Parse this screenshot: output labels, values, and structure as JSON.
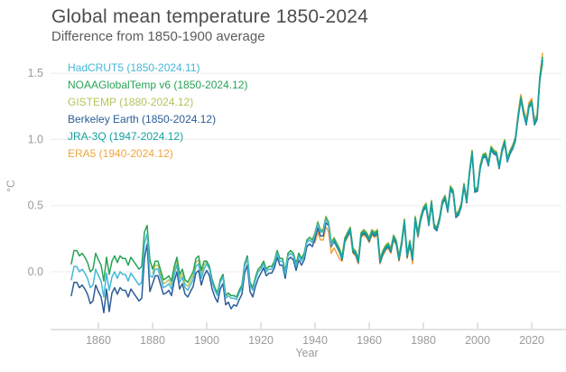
{
  "header": {
    "title": "Global mean temperature 1850-2024",
    "subtitle": "Difference from 1850-1900 average"
  },
  "chart_data": {
    "type": "line",
    "title": "Global mean temperature 1850-2024",
    "subtitle": "Difference from 1850-1900 average",
    "xlabel": "Year",
    "ylabel": "°C",
    "xlim": [
      1850,
      2024
    ],
    "ylim": [
      -0.44,
      1.7
    ],
    "grid": "horizontal",
    "legend_position": "top-left",
    "x_ticks": [
      1860,
      1880,
      1900,
      1920,
      1940,
      1960,
      1980,
      2000,
      2020
    ],
    "y_ticks": [
      {
        "label": "0.0",
        "value": 0.0
      },
      {
        "label": "0.5",
        "value": 0.5
      },
      {
        "label": "1.0",
        "value": 1.0
      },
      {
        "label": "1.5",
        "value": 1.5
      }
    ],
    "axis_color": "#c6c6c6",
    "grid_color": "#ececec",
    "draw_order": [
      2,
      5,
      3,
      1,
      0,
      4
    ],
    "series": [
      {
        "name": "HadCRUT5",
        "legend_label": "HadCRUT5 (1850-2024.11)",
        "color": "#45b7d7",
        "start_year": 1850,
        "values": [
          -0.06,
          0.04,
          0.04,
          0.0,
          0.02,
          -0.01,
          -0.05,
          -0.12,
          -0.1,
          0.02,
          -0.03,
          -0.07,
          -0.19,
          -0.01,
          -0.14,
          -0.04,
          0.0,
          -0.05,
          0.0,
          -0.02,
          -0.02,
          -0.07,
          -0.01,
          -0.04,
          -0.07,
          -0.1,
          -0.08,
          0.21,
          0.29,
          -0.03,
          -0.04,
          0.02,
          0.02,
          -0.05,
          -0.12,
          -0.11,
          -0.09,
          -0.13,
          -0.02,
          0.05,
          -0.08,
          -0.04,
          -0.12,
          -0.14,
          -0.1,
          -0.06,
          0.04,
          0.06,
          -0.05,
          0.02,
          0.06,
          0.02,
          -0.08,
          -0.14,
          -0.18,
          -0.08,
          -0.04,
          -0.2,
          -0.18,
          -0.2,
          -0.2,
          -0.21,
          -0.16,
          -0.12,
          0.04,
          0.1,
          -0.1,
          -0.14,
          -0.06,
          0.0,
          0.02,
          0.06,
          0.0,
          0.02,
          0.02,
          0.06,
          0.14,
          0.08,
          0.08,
          -0.02,
          0.12,
          0.14,
          0.12,
          0.04,
          0.12,
          0.08,
          0.12,
          0.22,
          0.24,
          0.22,
          0.28,
          0.36,
          0.3,
          0.3,
          0.4,
          0.36,
          0.2,
          0.24,
          0.2,
          0.16,
          0.1,
          0.24,
          0.28,
          0.32,
          0.16,
          0.14,
          0.08,
          0.28,
          0.3,
          0.28,
          0.24,
          0.3,
          0.28,
          0.3,
          0.08,
          0.14,
          0.18,
          0.2,
          0.16,
          0.26,
          0.22,
          0.1,
          0.22,
          0.38,
          0.12,
          0.22,
          0.1,
          0.4,
          0.28,
          0.4,
          0.47,
          0.5,
          0.36,
          0.52,
          0.34,
          0.32,
          0.4,
          0.52,
          0.56,
          0.46,
          0.63,
          0.6,
          0.42,
          0.44,
          0.5,
          0.65,
          0.53,
          0.74,
          0.9,
          0.61,
          0.62,
          0.79,
          0.87,
          0.88,
          0.81,
          0.93,
          0.9,
          0.89,
          0.79,
          0.91,
          0.98,
          0.84,
          0.9,
          0.94,
          1.0,
          1.17,
          1.31,
          1.2,
          1.12,
          1.25,
          1.28,
          1.12,
          1.16,
          1.46,
          1.6
        ]
      },
      {
        "name": "NOAAGlobalTemp v6",
        "legend_label": "NOAAGlobalTemp v6 (1850-2024.12)",
        "color": "#27a356",
        "start_year": 1850,
        "values": [
          0.06,
          0.16,
          0.16,
          0.12,
          0.14,
          0.11,
          0.07,
          0.0,
          0.02,
          0.14,
          0.09,
          0.05,
          -0.07,
          0.11,
          -0.02,
          0.08,
          0.12,
          0.07,
          0.12,
          0.1,
          0.1,
          0.05,
          0.11,
          0.08,
          0.05,
          0.02,
          0.04,
          0.3,
          0.35,
          0.09,
          0.02,
          0.08,
          0.08,
          0.01,
          -0.06,
          -0.05,
          -0.03,
          -0.07,
          0.04,
          0.11,
          -0.02,
          0.02,
          -0.06,
          -0.08,
          -0.04,
          0.0,
          0.1,
          0.12,
          0.01,
          0.08,
          0.08,
          0.04,
          -0.06,
          -0.12,
          -0.16,
          -0.06,
          -0.02,
          -0.18,
          -0.16,
          -0.18,
          -0.18,
          -0.19,
          -0.14,
          -0.1,
          0.06,
          0.12,
          -0.08,
          -0.12,
          -0.04,
          0.02,
          0.04,
          0.08,
          0.02,
          0.04,
          0.04,
          0.08,
          0.16,
          0.1,
          0.1,
          0.0,
          0.14,
          0.16,
          0.14,
          0.06,
          0.14,
          0.1,
          0.14,
          0.24,
          0.26,
          0.24,
          0.29,
          0.37,
          0.31,
          0.31,
          0.41,
          0.37,
          0.21,
          0.25,
          0.21,
          0.17,
          0.11,
          0.25,
          0.29,
          0.33,
          0.17,
          0.15,
          0.09,
          0.29,
          0.31,
          0.29,
          0.25,
          0.31,
          0.29,
          0.31,
          0.09,
          0.15,
          0.19,
          0.21,
          0.17,
          0.27,
          0.23,
          0.11,
          0.23,
          0.39,
          0.13,
          0.23,
          0.11,
          0.41,
          0.29,
          0.41,
          0.48,
          0.51,
          0.37,
          0.53,
          0.35,
          0.33,
          0.41,
          0.53,
          0.57,
          0.47,
          0.64,
          0.61,
          0.43,
          0.45,
          0.51,
          0.66,
          0.54,
          0.75,
          0.91,
          0.62,
          0.63,
          0.8,
          0.88,
          0.89,
          0.82,
          0.94,
          0.91,
          0.9,
          0.8,
          0.92,
          0.99,
          0.85,
          0.91,
          0.95,
          1.01,
          1.18,
          1.32,
          1.21,
          1.13,
          1.26,
          1.29,
          1.13,
          1.17,
          1.47,
          1.62
        ]
      },
      {
        "name": "GISTEMP",
        "legend_label": "GISTEMP (1880-2024.12)",
        "color": "#b4c45c",
        "start_year": 1880,
        "values": [
          -0.01,
          0.05,
          0.05,
          -0.02,
          -0.09,
          -0.08,
          -0.06,
          -0.1,
          0.01,
          0.08,
          -0.05,
          -0.01,
          -0.09,
          -0.11,
          -0.07,
          -0.03,
          0.07,
          0.09,
          -0.02,
          0.05,
          0.08,
          0.04,
          -0.06,
          -0.12,
          -0.16,
          -0.06,
          -0.02,
          -0.18,
          -0.16,
          -0.18,
          -0.18,
          -0.19,
          -0.14,
          -0.1,
          0.06,
          0.12,
          -0.08,
          -0.12,
          -0.04,
          0.02,
          0.04,
          0.08,
          0.02,
          0.04,
          0.04,
          0.08,
          0.16,
          0.1,
          0.1,
          0.0,
          0.14,
          0.16,
          0.14,
          0.06,
          0.14,
          0.1,
          0.14,
          0.24,
          0.26,
          0.24,
          0.3,
          0.38,
          0.32,
          0.32,
          0.42,
          0.38,
          0.22,
          0.26,
          0.22,
          0.18,
          0.12,
          0.26,
          0.3,
          0.34,
          0.18,
          0.16,
          0.1,
          0.3,
          0.32,
          0.3,
          0.26,
          0.32,
          0.3,
          0.32,
          0.1,
          0.16,
          0.2,
          0.22,
          0.18,
          0.28,
          0.24,
          0.12,
          0.24,
          0.4,
          0.14,
          0.24,
          0.12,
          0.42,
          0.3,
          0.42,
          0.49,
          0.52,
          0.38,
          0.54,
          0.36,
          0.34,
          0.42,
          0.54,
          0.58,
          0.48,
          0.65,
          0.62,
          0.44,
          0.46,
          0.52,
          0.67,
          0.55,
          0.76,
          0.92,
          0.63,
          0.64,
          0.81,
          0.89,
          0.9,
          0.83,
          0.95,
          0.92,
          0.91,
          0.81,
          0.93,
          1.0,
          0.86,
          0.92,
          0.96,
          1.02,
          1.19,
          1.33,
          1.22,
          1.14,
          1.27,
          1.3,
          1.14,
          1.18,
          1.44,
          1.57
        ]
      },
      {
        "name": "Berkeley Earth",
        "legend_label": "Berkeley Earth (1850-2024.12)",
        "color": "#2b5d97",
        "start_year": 1850,
        "values": [
          -0.18,
          -0.08,
          -0.08,
          -0.12,
          -0.1,
          -0.13,
          -0.17,
          -0.24,
          -0.22,
          -0.1,
          -0.15,
          -0.19,
          -0.31,
          -0.13,
          -0.3,
          -0.16,
          -0.12,
          -0.17,
          -0.12,
          -0.14,
          -0.14,
          -0.19,
          -0.13,
          -0.16,
          -0.19,
          -0.22,
          -0.2,
          0.1,
          0.21,
          -0.15,
          -0.09,
          -0.03,
          -0.03,
          -0.1,
          -0.17,
          -0.16,
          -0.14,
          -0.18,
          -0.07,
          0.0,
          -0.13,
          -0.09,
          -0.17,
          -0.19,
          -0.15,
          -0.11,
          -0.01,
          0.01,
          -0.1,
          -0.03,
          0.01,
          -0.03,
          -0.13,
          -0.19,
          -0.23,
          -0.13,
          -0.09,
          -0.25,
          -0.23,
          -0.28,
          -0.25,
          -0.26,
          -0.21,
          -0.17,
          -0.01,
          0.05,
          -0.15,
          -0.19,
          -0.11,
          -0.05,
          -0.01,
          0.03,
          -0.03,
          -0.01,
          -0.01,
          0.03,
          0.11,
          0.05,
          0.05,
          -0.05,
          0.09,
          0.11,
          0.09,
          0.01,
          0.09,
          0.05,
          0.09,
          0.19,
          0.21,
          0.19,
          0.25,
          0.33,
          0.27,
          0.27,
          0.37,
          0.35,
          0.19,
          0.23,
          0.19,
          0.15,
          0.09,
          0.23,
          0.27,
          0.31,
          0.15,
          0.13,
          0.07,
          0.27,
          0.29,
          0.27,
          0.23,
          0.29,
          0.27,
          0.29,
          0.07,
          0.13,
          0.17,
          0.19,
          0.15,
          0.25,
          0.21,
          0.09,
          0.21,
          0.37,
          0.11,
          0.21,
          0.09,
          0.39,
          0.27,
          0.39,
          0.46,
          0.49,
          0.35,
          0.51,
          0.33,
          0.31,
          0.39,
          0.51,
          0.55,
          0.45,
          0.62,
          0.59,
          0.41,
          0.43,
          0.49,
          0.64,
          0.52,
          0.73,
          0.89,
          0.6,
          0.61,
          0.78,
          0.86,
          0.87,
          0.8,
          0.92,
          0.89,
          0.88,
          0.78,
          0.9,
          0.97,
          0.83,
          0.89,
          0.93,
          0.99,
          1.16,
          1.3,
          1.19,
          1.11,
          1.24,
          1.27,
          1.11,
          1.15,
          1.45,
          1.59
        ]
      },
      {
        "name": "JRA-3Q",
        "legend_label": "JRA-3Q (1947-2024.12)",
        "color": "#13a1a0",
        "start_year": 1947,
        "values": [
          0.24,
          0.2,
          0.16,
          0.1,
          0.24,
          0.28,
          0.32,
          0.16,
          0.14,
          0.08,
          0.28,
          0.3,
          0.28,
          0.24,
          0.3,
          0.28,
          0.3,
          0.08,
          0.14,
          0.18,
          0.2,
          0.16,
          0.26,
          0.22,
          0.1,
          0.22,
          0.38,
          0.12,
          0.22,
          0.1,
          0.4,
          0.28,
          0.4,
          0.47,
          0.5,
          0.36,
          0.52,
          0.34,
          0.32,
          0.4,
          0.52,
          0.56,
          0.46,
          0.63,
          0.6,
          0.42,
          0.44,
          0.5,
          0.65,
          0.53,
          0.74,
          0.9,
          0.61,
          0.62,
          0.79,
          0.87,
          0.88,
          0.81,
          0.93,
          0.9,
          0.89,
          0.79,
          0.91,
          0.98,
          0.84,
          0.9,
          0.94,
          1.0,
          1.17,
          1.31,
          1.2,
          1.12,
          1.25,
          1.28,
          1.12,
          1.16,
          1.46,
          1.6
        ]
      },
      {
        "name": "ERA5",
        "legend_label": "ERA5 (1940-2024.12)",
        "color": "#f0a63c",
        "start_year": 1940,
        "values": [
          0.22,
          0.3,
          0.24,
          0.24,
          0.34,
          0.3,
          0.14,
          0.18,
          0.14,
          0.1,
          0.08,
          0.22,
          0.26,
          0.3,
          0.14,
          0.12,
          0.06,
          0.26,
          0.28,
          0.26,
          0.22,
          0.28,
          0.26,
          0.28,
          0.06,
          0.12,
          0.16,
          0.18,
          0.14,
          0.24,
          0.2,
          0.08,
          0.2,
          0.36,
          0.1,
          0.2,
          0.06,
          0.38,
          0.26,
          0.38,
          0.48,
          0.51,
          0.37,
          0.53,
          0.35,
          0.33,
          0.41,
          0.53,
          0.57,
          0.47,
          0.64,
          0.61,
          0.43,
          0.45,
          0.51,
          0.66,
          0.54,
          0.75,
          0.91,
          0.62,
          0.63,
          0.8,
          0.88,
          0.89,
          0.82,
          0.94,
          0.91,
          0.9,
          0.8,
          0.92,
          0.99,
          0.85,
          0.91,
          0.95,
          1.01,
          1.2,
          1.34,
          1.23,
          1.15,
          1.28,
          1.31,
          1.15,
          1.19,
          1.48,
          1.65
        ]
      }
    ]
  }
}
